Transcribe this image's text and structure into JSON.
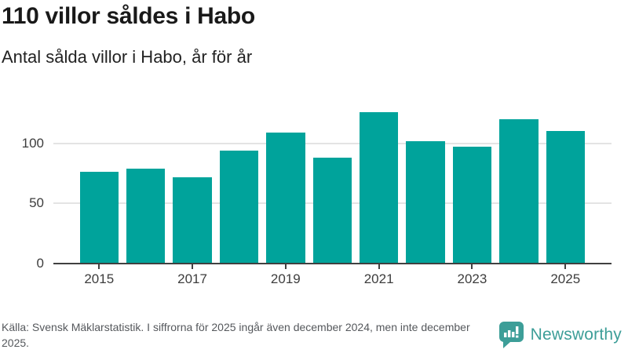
{
  "header": {
    "title": "110 villor såldes i Habo",
    "subtitle": "Antal sålda villor i Habo, år för år"
  },
  "chart_data": {
    "type": "bar",
    "title": "110 villor såldes i Habo",
    "subtitle": "Antal sålda villor i Habo, år för år",
    "categories": [
      2015,
      2016,
      2017,
      2018,
      2019,
      2020,
      2021,
      2022,
      2023,
      2024,
      2025
    ],
    "values": [
      76,
      79,
      72,
      94,
      109,
      88,
      126,
      102,
      97,
      120,
      110
    ],
    "x_tick_labels": [
      "2015",
      "2017",
      "2019",
      "2021",
      "2023",
      "2025"
    ],
    "y_ticks": [
      0,
      50,
      100
    ],
    "ylim": [
      0,
      137
    ],
    "xlabel": "",
    "ylabel": "",
    "grid": true,
    "legend_position": "none",
    "bar_color": "#00a39b"
  },
  "footer": {
    "source_text": "Källa: Svensk Mäklarstatistik. I siffrorna för 2025 ingår även december 2024, men inte december 2025.",
    "brand_name": "Newsworthy"
  },
  "colors": {
    "accent_teal": "#00a39b",
    "brand_teal": "#3d9e98",
    "title_text": "#191919",
    "axis_text": "#3d3d3d",
    "muted_text": "#55585c",
    "gridline": "#e4e4e4",
    "axis_line": "#404040",
    "background": "#ffffff"
  }
}
